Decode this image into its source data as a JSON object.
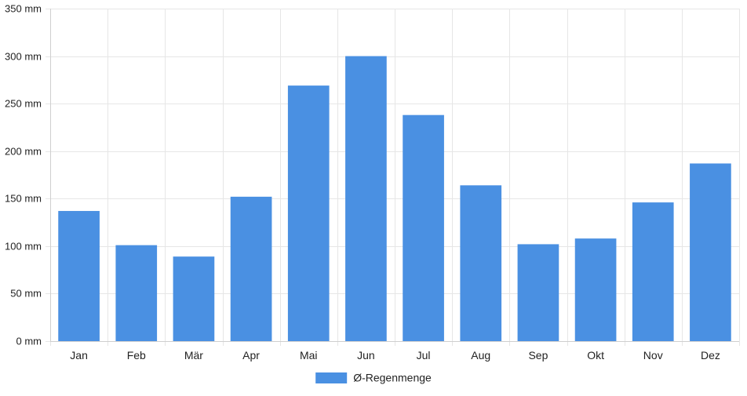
{
  "colors": {
    "bar": "#4a90e2",
    "grid": "#e6e6e6",
    "axis": "#cfcfcf",
    "text": "#222222"
  },
  "chart_data": {
    "type": "bar",
    "categories": [
      "Jan",
      "Feb",
      "Mär",
      "Apr",
      "Mai",
      "Jun",
      "Jul",
      "Aug",
      "Sep",
      "Okt",
      "Nov",
      "Dez"
    ],
    "series": [
      {
        "name": "Ø-Regenmenge",
        "values": [
          137,
          101,
          89,
          152,
          269,
          300,
          238,
          164,
          102,
          108,
          146,
          187
        ]
      }
    ],
    "title": "",
    "xlabel": "",
    "ylabel": "",
    "ylim": [
      0,
      350
    ],
    "y_ticks": [
      0,
      50,
      100,
      150,
      200,
      250,
      300,
      350
    ],
    "y_tick_labels": [
      "0 mm",
      "50 mm",
      "100 mm",
      "150 mm",
      "200 mm",
      "250 mm",
      "300 mm",
      "350 mm"
    ],
    "grid": true,
    "legend_position": "bottom"
  }
}
